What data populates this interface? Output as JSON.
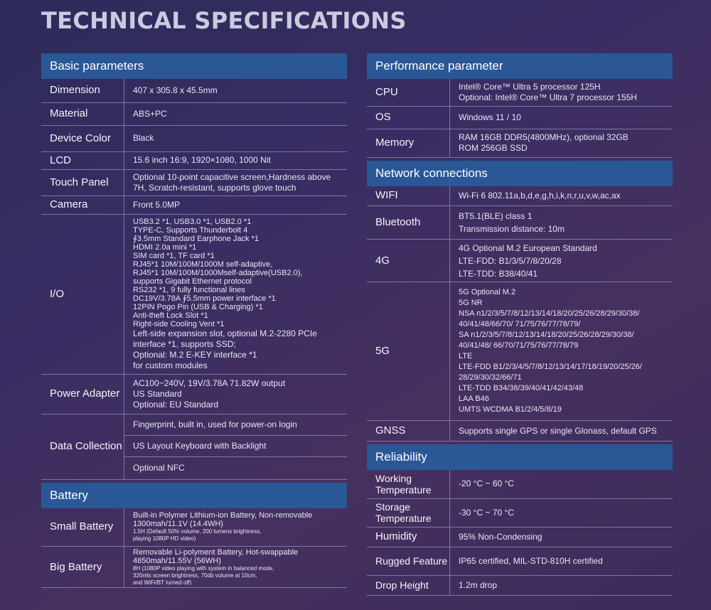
{
  "title": "TECHNICAL SPECIFICATIONS",
  "basic": {
    "header": "Basic parameters",
    "rows": [
      {
        "label": "Dimension",
        "lines": [
          "407 x 305.8 x 45.5mm"
        ]
      },
      {
        "label": "Material",
        "lines": [
          "ABS+PC"
        ]
      },
      {
        "label": "Device Color",
        "lines": [
          "Black"
        ]
      },
      {
        "label": "LCD",
        "lines": [
          "15.6 inch 16:9, 1920×1080, 1000 Nit"
        ]
      },
      {
        "label": "Touch Panel",
        "lines": [
          "Optional 10-point capacitive screen,Hardness above",
          "7H, Scratch-resistant, supports glove touch"
        ]
      },
      {
        "label": "Camera",
        "lines": [
          "Front 5.0MP"
        ]
      },
      {
        "label": "I/O",
        "lines": [
          "USB3.2 *1, USB3.0 *1, USB2.0 *1",
          "TYPE-C, Supports Thunderbolt 4",
          "∮3.5mm Standard Earphone Jack *1",
          "HDMI 2.0a mini *1",
          "SIM card *1, TF card *1",
          "RJ45*1 10M/100M/1000M self-adaptive,",
          "RJ45*1 10M/100M/1000Mself-adaptive(USB2.0),",
          "supports Gigabit Ethernet protocol",
          "RS232 *1, 9 fully functional lines",
          "DC19V/3.78A ∮5.5mm power interface *1",
          "12PIN Pogo Pin (USB & Charging) *1",
          "Anti-theft Lock Slot *1",
          "Right-side Cooling Vent *1",
          "Left-side expansion slot, optional M.2-2280 PCIe",
          "interface *1, supports SSD;",
          "Optional: M.2 E-KEY interface *1",
          "for custom modules"
        ]
      },
      {
        "label": "Power Adapter",
        "lines": [
          "AC100~240V, 19V/3.78A 71.82W output",
          "US Standard",
          "Optional: EU Standard"
        ]
      }
    ],
    "data_collection": {
      "label": "Data Collection",
      "items": [
        "Fingerprint, built in, used for power-on login",
        "US Layout Keyboard with Backlight",
        "Optional NFC"
      ]
    }
  },
  "battery": {
    "header": "Battery",
    "rows": [
      {
        "label": "Small Battery",
        "main": [
          "Built-in Polymer Lithium-ion Battery, Non-removable",
          "1300mah/11.1V (14.4WH)"
        ],
        "note": [
          "1.5H (Default 50% volume, 200 lumens brightness,",
          "playing 1080P HD video)"
        ]
      },
      {
        "label": "Big Battery",
        "main": [
          "Removable Li-polyment Battery, Hot-swappable",
          "4850mah/11.55V (56WH)"
        ],
        "note": [
          "8H (1080P video playing with system in balanced mode,",
          "320nits screen brightness, 70db volume at 10cm,",
          "and WiFi/BT turned off)"
        ]
      }
    ]
  },
  "performance": {
    "header": "Performance parameter",
    "rows": [
      {
        "label": "CPU",
        "lines": [
          "Intel® Core™ Ultra 5 processor 125H",
          "Optional: Intel® Core™ Ultra 7 processor 155H"
        ]
      },
      {
        "label": "OS",
        "lines": [
          "Windows 11 / 10"
        ]
      },
      {
        "label": "Memory",
        "lines": [
          "RAM 16GB DDR5(4800MHz), optional 32GB",
          "ROM 256GB SSD"
        ]
      }
    ]
  },
  "network": {
    "header": "Network connections",
    "rows": [
      {
        "label": "WIFI",
        "lines": [
          "Wi-Fi 6 802.11a,b,d,e,g,h,i,k,n,r,u,v,w,ac,ax"
        ]
      },
      {
        "label": "Bluetooth",
        "lines": [
          "BT5.1(BLE) class 1",
          "Transmission distance: 10m"
        ]
      },
      {
        "label": "4G",
        "lines": [
          "4G Optional M.2 European Standard",
          "LTE-FDD: B1/3/5/7/8/20/28",
          "LTE-TDD: B38/40/41"
        ]
      },
      {
        "label": "5G",
        "lines": [
          "5G Optional M.2",
          "5G NR",
          "NSA n1/2/3/5/7/8/12/13/14/18/20/25/26/28/29/30/38/",
          "40/41/48/66/70/ 71/75/76/77/78/79/",
          "SA n1/2/3/5/7/8/12/13/14/18/20/25/26/28/29/30/38/",
          "40/41/48/ 66/70/71/75/76/77/78/79",
          "LTE",
          "LTE-FDD B1/2/3/4/5/7/8/12/13/14/17/18/19/20/25/26/",
          "28/29/30/32/66/71",
          "LTE-TDD B34/38/39/40/41/42/43/48",
          "LAA B46",
          "UMTS WCDMA B1/2/4/5/8/19"
        ]
      },
      {
        "label": "GNSS",
        "lines": [
          "Supports single GPS or single Glonass, default GPS"
        ]
      }
    ]
  },
  "reliability": {
    "header": "Reliability",
    "rows": [
      {
        "label": "Working Temperature",
        "lines": [
          "-20 °C ~ 60 °C"
        ]
      },
      {
        "label": "Storage Temperature",
        "lines": [
          "-30 °C ~ 70 °C"
        ]
      },
      {
        "label": "Humidity",
        "lines": [
          "95% Non-Condensing"
        ]
      },
      {
        "label": "Rugged Feature",
        "lines": [
          "IP65 certified, MIL-STD-810H certified"
        ]
      },
      {
        "label": "Drop Height",
        "lines": [
          "1.2m drop"
        ]
      }
    ]
  }
}
